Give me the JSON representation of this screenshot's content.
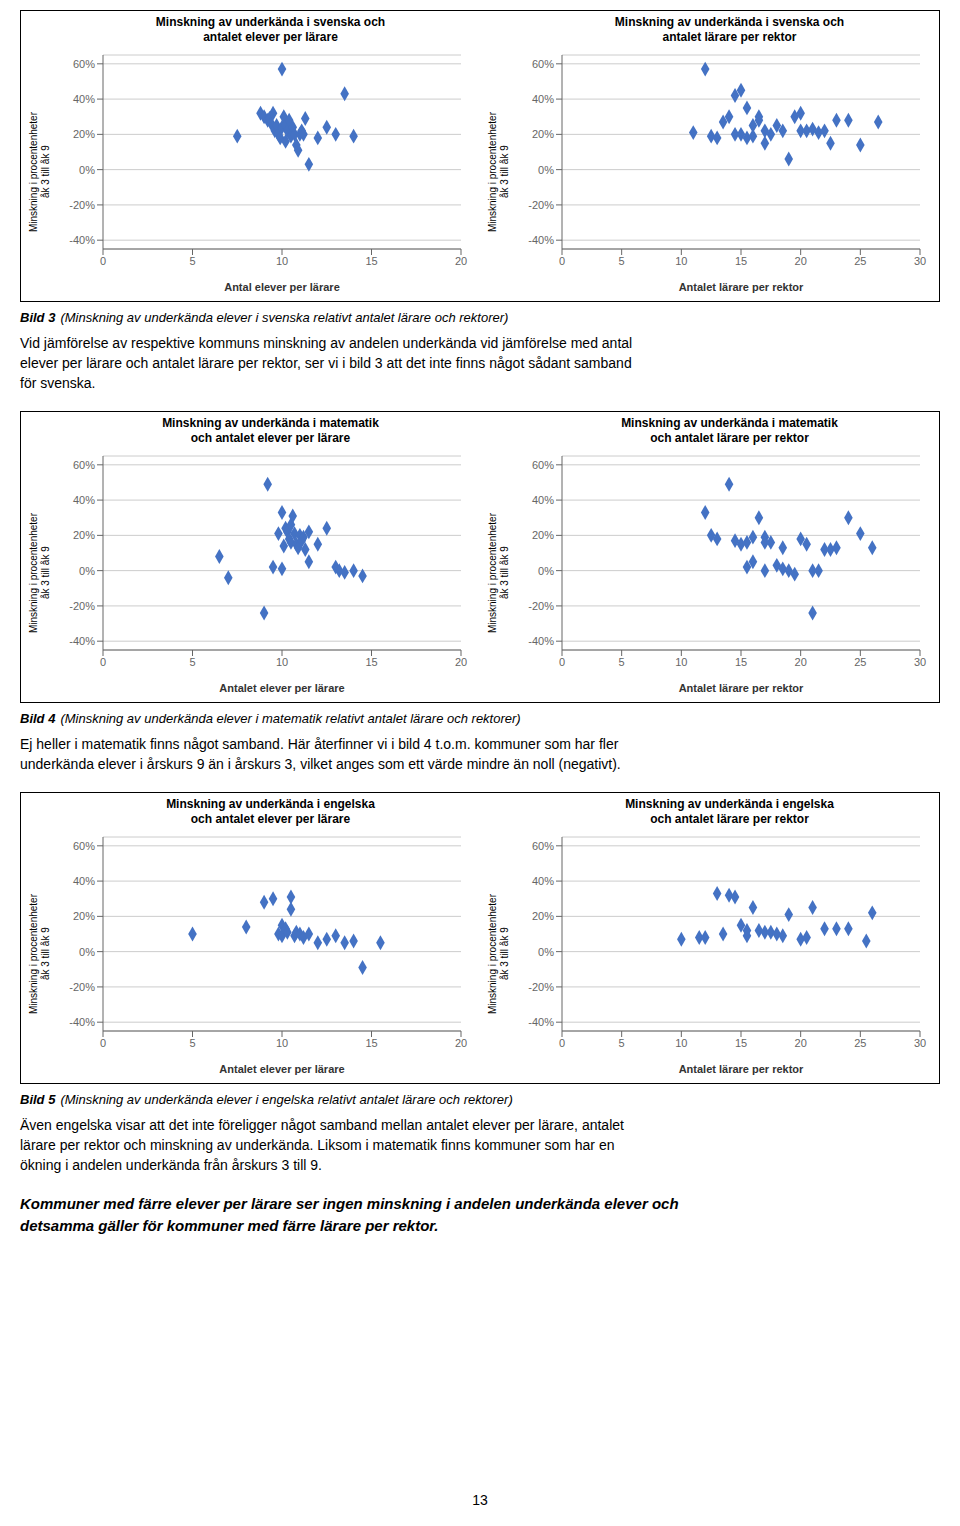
{
  "chart_data": [
    {
      "type": "scatter",
      "title": "Minskning av underkända i svenska och\nantalet elever per lärare",
      "x_label": "Antal elever per lärare",
      "y_label": "Minskning i procentenheter\nåk 3 till åk 9",
      "xlim": [
        0,
        20
      ],
      "ylim": [
        -0.45,
        0.65
      ],
      "xticks": [
        0,
        5,
        10,
        15,
        20
      ],
      "yticks": [
        {
          "value": -0.4,
          "label": "-40%"
        },
        {
          "value": -0.2,
          "label": "-20%"
        },
        {
          "value": 0.0,
          "label": "0%"
        },
        {
          "value": 0.2,
          "label": "20%"
        },
        {
          "value": 0.4,
          "label": "40%"
        },
        {
          "value": 0.6,
          "label": "60%"
        }
      ],
      "color": "#4472C4",
      "marker": "diamond",
      "grid": "y",
      "x": [
        7.5,
        8.8,
        9.0,
        9.2,
        9.3,
        9.4,
        9.5,
        9.6,
        9.7,
        9.8,
        9.9,
        10.0,
        10.0,
        10.1,
        10.2,
        10.2,
        10.3,
        10.4,
        10.5,
        10.5,
        10.6,
        10.7,
        10.8,
        10.9,
        11.0,
        11.1,
        11.2,
        11.3,
        11.5,
        12.0,
        12.5,
        13.0,
        13.5,
        14.0
      ],
      "values": [
        0.19,
        0.32,
        0.3,
        0.28,
        0.29,
        0.26,
        0.32,
        0.22,
        0.25,
        0.2,
        0.18,
        0.57,
        0.24,
        0.3,
        0.16,
        0.25,
        0.22,
        0.28,
        0.21,
        0.19,
        0.24,
        0.2,
        0.14,
        0.11,
        0.2,
        0.22,
        0.2,
        0.29,
        0.03,
        0.18,
        0.24,
        0.2,
        0.43,
        0.19
      ]
    },
    {
      "type": "scatter",
      "title": "Minskning av underkända i svenska och\nantalet lärare per rektor",
      "x_label": "Antalet lärare per rektor",
      "y_label": "Minskning i procentenheter\nåk 3 till åk 9",
      "xlim": [
        0,
        30
      ],
      "ylim": [
        -0.45,
        0.65
      ],
      "xticks": [
        0,
        5,
        10,
        15,
        20,
        25,
        30
      ],
      "yticks": [
        {
          "value": -0.4,
          "label": "-40%"
        },
        {
          "value": -0.2,
          "label": "-20%"
        },
        {
          "value": 0.0,
          "label": "0%"
        },
        {
          "value": 0.2,
          "label": "20%"
        },
        {
          "value": 0.4,
          "label": "40%"
        },
        {
          "value": 0.6,
          "label": "60%"
        }
      ],
      "color": "#4472C4",
      "marker": "diamond",
      "grid": "y",
      "x": [
        11.0,
        12.0,
        12.5,
        13.0,
        13.5,
        14.0,
        14.5,
        14.5,
        15.0,
        15.0,
        15.5,
        15.5,
        16.0,
        16.0,
        16.5,
        16.5,
        17.0,
        17.0,
        17.5,
        18.0,
        18.5,
        19.0,
        19.5,
        20.0,
        20.0,
        20.5,
        21.0,
        21.5,
        22.0,
        22.5,
        23.0,
        24.0,
        25.0,
        26.5
      ],
      "values": [
        0.21,
        0.57,
        0.19,
        0.18,
        0.27,
        0.3,
        0.42,
        0.2,
        0.45,
        0.2,
        0.35,
        0.18,
        0.25,
        0.19,
        0.3,
        0.28,
        0.22,
        0.15,
        0.2,
        0.25,
        0.22,
        0.06,
        0.3,
        0.32,
        0.22,
        0.22,
        0.23,
        0.21,
        0.22,
        0.15,
        0.28,
        0.28,
        0.14,
        0.27
      ]
    },
    {
      "type": "scatter",
      "title": "Minskning av underkända i matematik\noch antalet elever per lärare",
      "x_label": "Antalet elever per lärare",
      "y_label": "Minskning i procentenheter\nåk 3 till åk 9",
      "xlim": [
        0,
        20
      ],
      "ylim": [
        -0.45,
        0.65
      ],
      "xticks": [
        0,
        5,
        10,
        15,
        20
      ],
      "yticks": [
        {
          "value": -0.4,
          "label": "-40%"
        },
        {
          "value": -0.2,
          "label": "-20%"
        },
        {
          "value": 0.0,
          "label": "0%"
        },
        {
          "value": 0.2,
          "label": "20%"
        },
        {
          "value": 0.4,
          "label": "40%"
        },
        {
          "value": 0.6,
          "label": "60%"
        }
      ],
      "color": "#4472C4",
      "marker": "diamond",
      "grid": "y",
      "x": [
        6.5,
        7.0,
        9.0,
        9.2,
        9.5,
        9.8,
        10.0,
        10.0,
        10.1,
        10.2,
        10.3,
        10.4,
        10.5,
        10.5,
        10.6,
        10.7,
        10.8,
        10.9,
        11.0,
        11.1,
        11.2,
        11.3,
        11.5,
        11.5,
        12.0,
        12.5,
        13.0,
        13.2,
        13.5,
        14.0,
        14.5
      ],
      "values": [
        0.08,
        -0.04,
        -0.24,
        0.49,
        0.02,
        0.21,
        0.33,
        0.01,
        0.14,
        0.24,
        0.22,
        0.18,
        0.26,
        0.16,
        0.31,
        0.21,
        0.15,
        0.13,
        0.2,
        0.17,
        0.19,
        0.12,
        0.05,
        0.22,
        0.15,
        0.24,
        0.02,
        0.0,
        -0.01,
        0.0,
        -0.03
      ]
    },
    {
      "type": "scatter",
      "title": "Minskning av underkända i matematik\noch antalet lärare per rektor",
      "x_label": "Antalet lärare per rektor",
      "y_label": "Minskning i procentenheter\nåk 3 till åk 9",
      "xlim": [
        0,
        30
      ],
      "ylim": [
        -0.45,
        0.65
      ],
      "xticks": [
        0,
        5,
        10,
        15,
        20,
        25,
        30
      ],
      "yticks": [
        {
          "value": -0.4,
          "label": "-40%"
        },
        {
          "value": -0.2,
          "label": "-20%"
        },
        {
          "value": 0.0,
          "label": "0%"
        },
        {
          "value": 0.2,
          "label": "20%"
        },
        {
          "value": 0.4,
          "label": "40%"
        },
        {
          "value": 0.6,
          "label": "60%"
        }
      ],
      "color": "#4472C4",
      "marker": "diamond",
      "grid": "y",
      "x": [
        12.0,
        12.5,
        13.0,
        14.0,
        14.5,
        15.0,
        15.5,
        15.5,
        16.0,
        16.0,
        16.5,
        17.0,
        17.0,
        17.0,
        17.5,
        18.0,
        18.5,
        18.5,
        19.0,
        19.5,
        20.0,
        20.5,
        21.0,
        21.0,
        21.5,
        22.0,
        22.5,
        23.0,
        24.0,
        25.0,
        26.0
      ],
      "values": [
        0.33,
        0.2,
        0.18,
        0.49,
        0.17,
        0.15,
        0.16,
        0.02,
        0.19,
        0.05,
        0.3,
        0.19,
        0.16,
        0.0,
        0.16,
        0.03,
        0.01,
        0.13,
        0.0,
        -0.02,
        0.18,
        0.15,
        -0.24,
        0.0,
        0.0,
        0.12,
        0.12,
        0.13,
        0.3,
        0.21,
        0.13
      ]
    },
    {
      "type": "scatter",
      "title": "Minskning av underkända i engelska\noch antalet elever per lärare",
      "x_label": "Antalet elever per lärare",
      "y_label": "Minskning i procentenheter\nåk 3 till åk 9",
      "xlim": [
        0,
        20
      ],
      "ylim": [
        -0.45,
        0.65
      ],
      "xticks": [
        0,
        5,
        10,
        15,
        20
      ],
      "yticks": [
        {
          "value": -0.4,
          "label": "-40%"
        },
        {
          "value": -0.2,
          "label": "-20%"
        },
        {
          "value": 0.0,
          "label": "0%"
        },
        {
          "value": 0.2,
          "label": "20%"
        },
        {
          "value": 0.4,
          "label": "40%"
        },
        {
          "value": 0.6,
          "label": "60%"
        }
      ],
      "color": "#4472C4",
      "marker": "diamond",
      "grid": "y",
      "x": [
        5.0,
        8.0,
        9.0,
        9.5,
        9.8,
        10.0,
        10.0,
        10.2,
        10.3,
        10.5,
        10.5,
        10.7,
        10.8,
        11.0,
        11.2,
        11.5,
        12.0,
        12.5,
        13.0,
        13.5,
        14.0,
        14.5,
        15.5
      ],
      "values": [
        0.1,
        0.14,
        0.28,
        0.3,
        0.1,
        0.15,
        0.09,
        0.13,
        0.11,
        0.31,
        0.24,
        0.09,
        0.11,
        0.1,
        0.08,
        0.1,
        0.05,
        0.07,
        0.09,
        0.05,
        0.06,
        -0.09,
        0.05
      ]
    },
    {
      "type": "scatter",
      "title": "Minskning av underkända i engelska\noch antalet lärare per rektor",
      "x_label": "Antalet lärare per rektor",
      "y_label": "Minskning i procentenheter\nåk 3 till åk 9",
      "xlim": [
        0,
        30
      ],
      "ylim": [
        -0.45,
        0.65
      ],
      "xticks": [
        0,
        5,
        10,
        15,
        20,
        25,
        30
      ],
      "yticks": [
        {
          "value": -0.4,
          "label": "-40%"
        },
        {
          "value": -0.2,
          "label": "-20%"
        },
        {
          "value": 0.0,
          "label": "0%"
        },
        {
          "value": 0.2,
          "label": "20%"
        },
        {
          "value": 0.4,
          "label": "40%"
        },
        {
          "value": 0.6,
          "label": "60%"
        }
      ],
      "color": "#4472C4",
      "marker": "diamond",
      "grid": "y",
      "x": [
        10.0,
        11.5,
        12.0,
        13.0,
        13.5,
        14.0,
        14.5,
        15.0,
        15.5,
        15.5,
        16.0,
        16.5,
        17.0,
        17.5,
        18.0,
        18.5,
        19.0,
        20.0,
        20.5,
        21.0,
        22.0,
        23.0,
        24.0,
        25.5,
        26.0
      ],
      "values": [
        0.07,
        0.08,
        0.08,
        0.33,
        0.1,
        0.32,
        0.31,
        0.15,
        0.09,
        0.12,
        0.25,
        0.12,
        0.11,
        0.11,
        0.1,
        0.09,
        0.21,
        0.07,
        0.08,
        0.25,
        0.13,
        0.13,
        0.13,
        0.06,
        0.22
      ]
    }
  ],
  "annotations": [
    [
      "Bild 3",
      "(Minskning av underkända elever i svenska relativt antalet lärare och rektorer)",
      "Vid jämförelse av respektive kommuns minskning av andelen underkända vid jämförelse med antal",
      "elever per lärare och antalet lärare per rektor, ser vi i bild 3 att det inte finns något sådant samband",
      "för svenska."
    ],
    [
      "Bild 4",
      "(Minskning av underkända elever i matematik relativt antalet lärare och rektorer)",
      "Ej heller i matematik finns något samband. Här återfinner vi i bild 4 t.o.m. kommuner som har fler",
      "underkända elever i årskurs 9 än i årskurs 3, vilket anges som ett värde mindre än noll (negativt)."
    ],
    [
      "Bild 5",
      "(Minskning av underkända elever i engelska relativt antalet lärare och rektorer)",
      "Även engelska visar att det inte föreligger något samband mellan antalet elever per lärare, antalet",
      "lärare per rektor och minskning av underkända. Liksom i matematik finns kommuner som har en",
      "ökning i andelen underkända från årskurs 3 till 9."
    ],
    [
      "Kommuner med färre elever per lärare ser ingen minskning i andelen underkända elever och",
      "detsamma gäller för kommuner med färre lärare per rektor."
    ],
    [
      "13"
    ]
  ]
}
